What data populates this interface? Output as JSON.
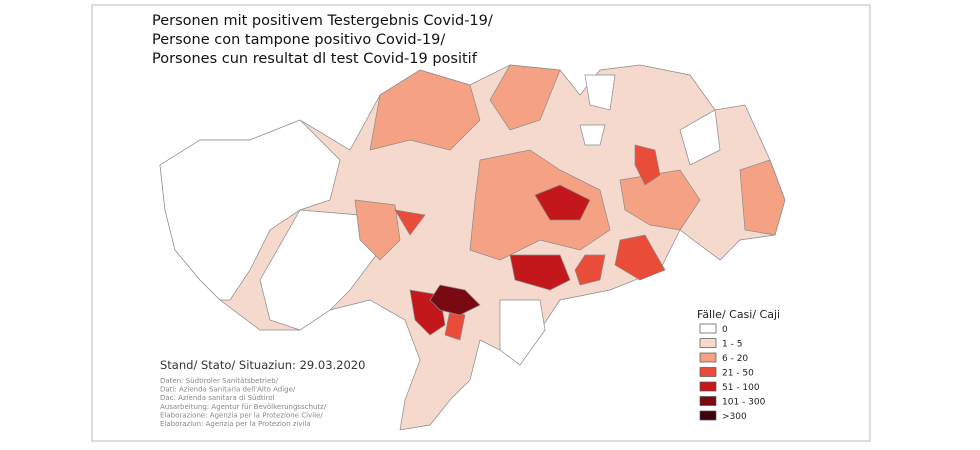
{
  "title_lines": [
    "Personen mit  positivem Testergebnis Covid-19/",
    "Persone con tampone  positivo Covid-19/",
    "Porsones cun resultat dl test Covid-19 positif"
  ],
  "legend": {
    "title": "Fälle/ Casi/ Caji",
    "items": [
      {
        "label": "0",
        "color": "#ffffff"
      },
      {
        "label": "1 - 5",
        "color": "#f6d9cd"
      },
      {
        "label": "6 - 20",
        "color": "#f4a283"
      },
      {
        "label": "21 - 50",
        "color": "#ea4c3a"
      },
      {
        "label": "51 - 100",
        "color": "#c4171c"
      },
      {
        "label": "101 - 300",
        "color": "#7a0a12"
      },
      {
        "label": ">300",
        "color": "#3d0508"
      }
    ]
  },
  "stand": "Stand/ Stato/ Situaziun: 29.03.2020",
  "credits": [
    "Daten: Südtiroler Sanitätsbetrieb/",
    "Dati: Azienda Sanitaria dell'Alto Adige/",
    "Dac: Azienda sanitara di Südtirol",
    "Ausarbeitung: Agentur für Bevölkerungsschutz/",
    "Elaborazione: Agenzia per la Protezione Civile/",
    "Elaboraziun: Agenzia per la Protezion zivila"
  ]
}
